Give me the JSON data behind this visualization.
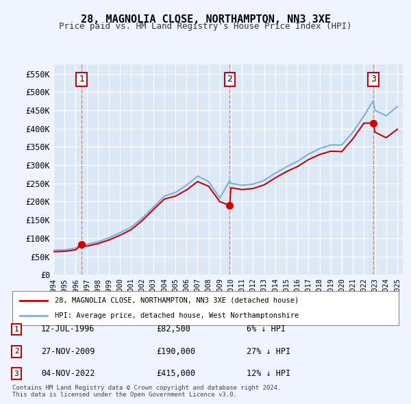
{
  "title": "28, MAGNOLIA CLOSE, NORTHAMPTON, NN3 3XE",
  "subtitle": "Price paid vs. HM Land Registry's House Price Index (HPI)",
  "ylim": [
    0,
    575000
  ],
  "yticks": [
    0,
    50000,
    100000,
    150000,
    200000,
    250000,
    300000,
    350000,
    400000,
    450000,
    500000,
    550000
  ],
  "ytick_labels": [
    "£0",
    "£50K",
    "£100K",
    "£150K",
    "£200K",
    "£250K",
    "£300K",
    "£350K",
    "£400K",
    "£450K",
    "£500K",
    "£550K"
  ],
  "background_color": "#f0f4ff",
  "plot_bg_color": "#dce8f5",
  "grid_color": "#ffffff",
  "hpi_color": "#7ab0e0",
  "price_color": "#cc0000",
  "dashed_line_color": "#ff6666",
  "sales": [
    {
      "date_num": 1996.54,
      "price": 82500,
      "label": "1"
    },
    {
      "date_num": 2009.9,
      "price": 190000,
      "label": "2"
    },
    {
      "date_num": 2022.84,
      "price": 415000,
      "label": "3"
    }
  ],
  "sale_annotations": [
    {
      "label": "1",
      "date": "12-JUL-1996",
      "price": "£82,500",
      "hpi_diff": "6% ↓ HPI"
    },
    {
      "label": "2",
      "date": "27-NOV-2009",
      "price": "£190,000",
      "hpi_diff": "27% ↓ HPI"
    },
    {
      "label": "3",
      "date": "04-NOV-2022",
      "price": "£415,000",
      "hpi_diff": "12% ↓ HPI"
    }
  ],
  "legend_entry1": "28, MAGNOLIA CLOSE, NORTHAMPTON, NN3 3XE (detached house)",
  "legend_entry2": "HPI: Average price, detached house, West Northamptonshire",
  "footer": "Contains HM Land Registry data © Crown copyright and database right 2024.\nThis data is licensed under the Open Government Licence v3.0.",
  "hpi_data": {
    "years": [
      1994,
      1995,
      1996,
      1996.54,
      1997,
      1998,
      1999,
      2000,
      2001,
      2002,
      2003,
      2004,
      2005,
      2006,
      2007,
      2008,
      2009,
      2009.9,
      2010,
      2011,
      2012,
      2013,
      2014,
      2015,
      2016,
      2017,
      2018,
      2019,
      2020,
      2021,
      2022,
      2022.84,
      2023,
      2024,
      2025
    ],
    "values": [
      67000,
      68000,
      73000,
      87500,
      83000,
      90000,
      101000,
      115000,
      130000,
      155000,
      185000,
      215000,
      225000,
      245000,
      270000,
      255000,
      210000,
      258000,
      250000,
      245000,
      248000,
      258000,
      278000,
      295000,
      310000,
      330000,
      345000,
      355000,
      355000,
      390000,
      435000,
      476000,
      450000,
      435000,
      460000
    ]
  },
  "price_line_data": {
    "years": [
      1994,
      1995,
      1996,
      1996.54,
      1997,
      1998,
      1999,
      2000,
      2001,
      2002,
      2003,
      2004,
      2005,
      2006,
      2007,
      2008,
      2009,
      2009.9,
      2010,
      2011,
      2012,
      2013,
      2014,
      2015,
      2016,
      2017,
      2018,
      2019,
      2020,
      2021,
      2022,
      2022.84,
      2023,
      2024,
      2025
    ],
    "values": [
      63000,
      64000,
      68000,
      82500,
      78000,
      85000,
      95000,
      108000,
      123000,
      148000,
      178000,
      207000,
      215000,
      232000,
      255000,
      242000,
      200000,
      190000,
      238000,
      233000,
      236000,
      246000,
      265000,
      282000,
      296000,
      315000,
      329000,
      338000,
      337000,
      372000,
      415000,
      415000,
      390000,
      375000,
      398000
    ]
  }
}
